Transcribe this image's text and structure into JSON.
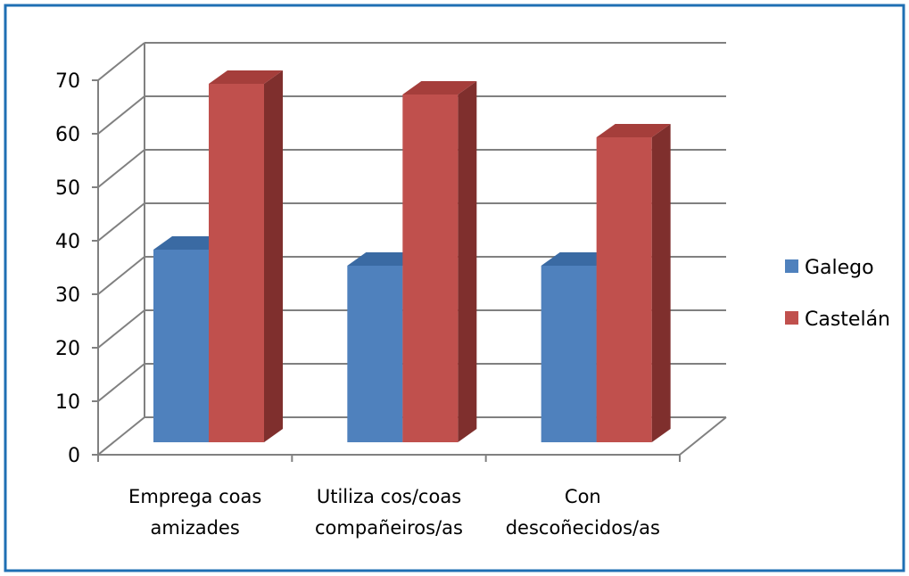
{
  "chart_data": {
    "type": "bar",
    "categories": [
      [
        "Emprega coas",
        "amizades"
      ],
      [
        "Utiliza cos/coas",
        "compañeiros/as"
      ],
      [
        "Con",
        "descoñecidos/as"
      ]
    ],
    "series": [
      {
        "name": "Galego",
        "values": [
          36,
          33,
          33
        ]
      },
      {
        "name": "Castelán",
        "values": [
          67,
          65,
          57
        ]
      }
    ],
    "ylim": [
      0,
      70
    ],
    "yticks": [
      0,
      10,
      20,
      30,
      40,
      50,
      60,
      70
    ],
    "grid": true,
    "legend": "right",
    "style": "3d-clustered-column"
  },
  "colors": {
    "border": "#1f6fb3",
    "grid": "#808080",
    "series": [
      {
        "front": "#4f81bd",
        "top": "#3a6aa3",
        "side": "#2f5985"
      },
      {
        "front": "#c0504d",
        "top": "#a53e3b",
        "side": "#7f2f2d"
      }
    ]
  }
}
